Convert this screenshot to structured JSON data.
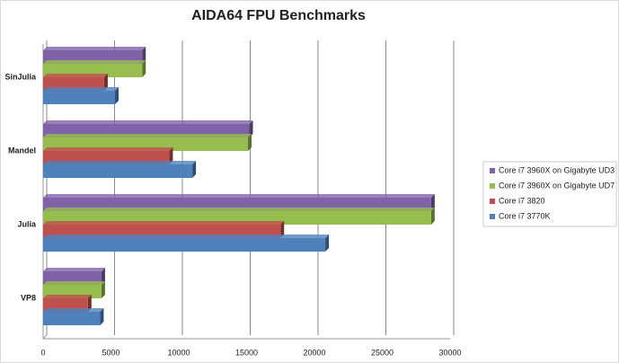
{
  "chart_data": {
    "type": "bar",
    "orientation": "horizontal",
    "title": "AIDA64 FPU Benchmarks",
    "categories": [
      "SinJulia",
      "Mandel",
      "Julia",
      "VP8"
    ],
    "series": [
      {
        "name": "Core i7 3960X on Gigabyte UD3",
        "color": "#7f62a8",
        "values": [
          7300,
          15200,
          28600,
          4300
        ]
      },
      {
        "name": "Core i7 3960X on Gigabyte UD7",
        "color": "#98bd4f",
        "values": [
          7300,
          15100,
          28600,
          4300
        ]
      },
      {
        "name": "Core i7 3820",
        "color": "#c0504d",
        "values": [
          4500,
          9300,
          17500,
          3300
        ]
      },
      {
        "name": "Core i7 3770K",
        "color": "#4f81bd",
        "values": [
          5300,
          11000,
          20800,
          4200
        ]
      }
    ],
    "xlim": [
      0,
      30000
    ],
    "xticks": [
      0,
      5000,
      10000,
      15000,
      20000,
      25000,
      30000
    ],
    "grid": true,
    "legend": "right"
  }
}
